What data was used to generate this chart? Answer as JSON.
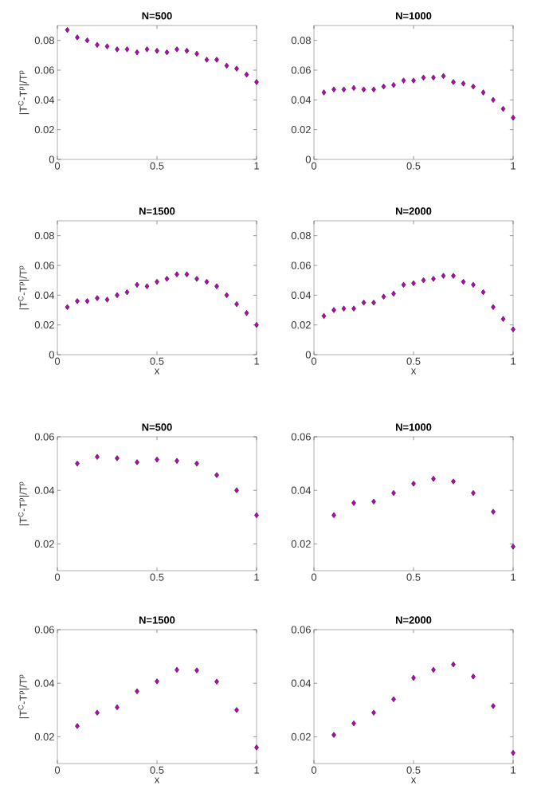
{
  "chart_data": [
    {
      "type": "scatter",
      "title": "N=500",
      "ylabel": "|T$^{C}$-T$^{p}$|/T$^{p}$",
      "color": "#c000c0",
      "marker": "diamond",
      "xlim": [
        0,
        1
      ],
      "ylim": [
        0,
        0.09
      ],
      "xticks": [
        0,
        0.5,
        1
      ],
      "yticks": [
        0,
        0.02,
        0.04,
        0.06,
        0.08
      ],
      "x": [
        0.05,
        0.1,
        0.15,
        0.2,
        0.25,
        0.3,
        0.35,
        0.4,
        0.45,
        0.5,
        0.55,
        0.6,
        0.65,
        0.7,
        0.75,
        0.8,
        0.85,
        0.9,
        0.95,
        1
      ],
      "values": [
        0.087,
        0.082,
        0.08,
        0.077,
        0.076,
        0.074,
        0.074,
        0.072,
        0.074,
        0.073,
        0.072,
        0.074,
        0.073,
        0.071,
        0.067,
        0.067,
        0.063,
        0.061,
        0.057,
        0.052
      ]
    },
    {
      "type": "scatter",
      "title": "N=1000",
      "color": "#c000c0",
      "marker": "diamond",
      "xlim": [
        0,
        1
      ],
      "ylim": [
        0,
        0.09
      ],
      "xticks": [
        0,
        0.5,
        1
      ],
      "yticks": [
        0,
        0.02,
        0.04,
        0.06,
        0.08
      ],
      "x": [
        0.05,
        0.1,
        0.15,
        0.2,
        0.25,
        0.3,
        0.35,
        0.4,
        0.45,
        0.5,
        0.55,
        0.6,
        0.65,
        0.7,
        0.75,
        0.8,
        0.85,
        0.9,
        0.95,
        1
      ],
      "values": [
        0.045,
        0.047,
        0.047,
        0.048,
        0.047,
        0.047,
        0.049,
        0.05,
        0.053,
        0.053,
        0.055,
        0.055,
        0.056,
        0.052,
        0.051,
        0.049,
        0.045,
        0.04,
        0.034,
        0.028
      ]
    },
    {
      "type": "scatter",
      "title": "N=1500",
      "xlabel": "x",
      "ylabel": "|T$^{C}$-T$^{p}$|/T$^{p}$",
      "color": "#c000c0",
      "marker": "diamond",
      "xlim": [
        0,
        1
      ],
      "ylim": [
        0,
        0.09
      ],
      "xticks": [
        0,
        0.5,
        1
      ],
      "yticks": [
        0,
        0.02,
        0.04,
        0.06,
        0.08
      ],
      "x": [
        0.05,
        0.1,
        0.15,
        0.2,
        0.25,
        0.3,
        0.35,
        0.4,
        0.45,
        0.5,
        0.55,
        0.6,
        0.65,
        0.7,
        0.75,
        0.8,
        0.85,
        0.9,
        0.95,
        1
      ],
      "values": [
        0.032,
        0.036,
        0.036,
        0.038,
        0.037,
        0.04,
        0.042,
        0.047,
        0.046,
        0.049,
        0.051,
        0.054,
        0.054,
        0.051,
        0.049,
        0.046,
        0.04,
        0.034,
        0.028,
        0.02
      ]
    },
    {
      "type": "scatter",
      "title": "N=2000",
      "xlabel": "x",
      "color": "#c000c0",
      "marker": "diamond",
      "xlim": [
        0,
        1
      ],
      "ylim": [
        0,
        0.09
      ],
      "xticks": [
        0,
        0.5,
        1
      ],
      "yticks": [
        0,
        0.02,
        0.04,
        0.06,
        0.08
      ],
      "x": [
        0.05,
        0.1,
        0.15,
        0.2,
        0.25,
        0.3,
        0.35,
        0.4,
        0.45,
        0.5,
        0.55,
        0.6,
        0.65,
        0.7,
        0.75,
        0.8,
        0.85,
        0.9,
        0.95,
        1
      ],
      "values": [
        0.026,
        0.03,
        0.031,
        0.031,
        0.035,
        0.035,
        0.039,
        0.041,
        0.047,
        0.048,
        0.05,
        0.051,
        0.053,
        0.053,
        0.049,
        0.047,
        0.042,
        0.032,
        0.024,
        0.017
      ]
    },
    {
      "type": "scatter",
      "title": "N=500",
      "ylabel": "|T$^{C}$-T$^{p}$|/T$^{p}$",
      "color": "#c000c0",
      "marker": "diamond",
      "xlim": [
        0,
        1
      ],
      "ylim": [
        0.01,
        0.06
      ],
      "xticks": [
        0,
        0.5,
        1
      ],
      "yticks": [
        0.02,
        0.04,
        0.06
      ],
      "x": [
        0.1,
        0.2,
        0.3,
        0.4,
        0.5,
        0.6,
        0.7,
        0.8,
        0.9,
        1
      ],
      "values": [
        0.05,
        0.0525,
        0.052,
        0.0505,
        0.0515,
        0.051,
        0.05,
        0.0457,
        0.04,
        0.0307
      ]
    },
    {
      "type": "scatter",
      "title": "N=1000",
      "color": "#c000c0",
      "marker": "diamond",
      "xlim": [
        0,
        1
      ],
      "ylim": [
        0.01,
        0.06
      ],
      "xticks": [
        0,
        0.5,
        1
      ],
      "yticks": [
        0.02,
        0.04,
        0.06
      ],
      "x": [
        0.1,
        0.2,
        0.3,
        0.4,
        0.5,
        0.6,
        0.7,
        0.8,
        0.9,
        1
      ],
      "values": [
        0.0307,
        0.0353,
        0.0358,
        0.039,
        0.0425,
        0.0443,
        0.0433,
        0.039,
        0.032,
        0.019
      ]
    },
    {
      "type": "scatter",
      "title": "N=1500",
      "xlabel": "x",
      "ylabel": "|T$^{C}$-T$^{p}$|/T$^{p}$",
      "color": "#c000c0",
      "marker": "diamond",
      "xlim": [
        0,
        1
      ],
      "ylim": [
        0.01,
        0.06
      ],
      "xticks": [
        0,
        0.5,
        1
      ],
      "yticks": [
        0.02,
        0.04,
        0.06
      ],
      "x": [
        0.1,
        0.2,
        0.3,
        0.4,
        0.5,
        0.6,
        0.7,
        0.8,
        0.9,
        1
      ],
      "values": [
        0.024,
        0.029,
        0.031,
        0.037,
        0.0407,
        0.045,
        0.0448,
        0.0406,
        0.03,
        0.016
      ]
    },
    {
      "type": "scatter",
      "title": "N=2000",
      "xlabel": "x",
      "color": "#c000c0",
      "marker": "diamond",
      "xlim": [
        0,
        1
      ],
      "ylim": [
        0.01,
        0.06
      ],
      "xticks": [
        0,
        0.5,
        1
      ],
      "yticks": [
        0.02,
        0.04,
        0.06
      ],
      "x": [
        0.1,
        0.2,
        0.3,
        0.4,
        0.5,
        0.6,
        0.7,
        0.8,
        0.9,
        1
      ],
      "values": [
        0.0207,
        0.025,
        0.029,
        0.034,
        0.042,
        0.045,
        0.047,
        0.0425,
        0.0315,
        0.014
      ]
    }
  ]
}
